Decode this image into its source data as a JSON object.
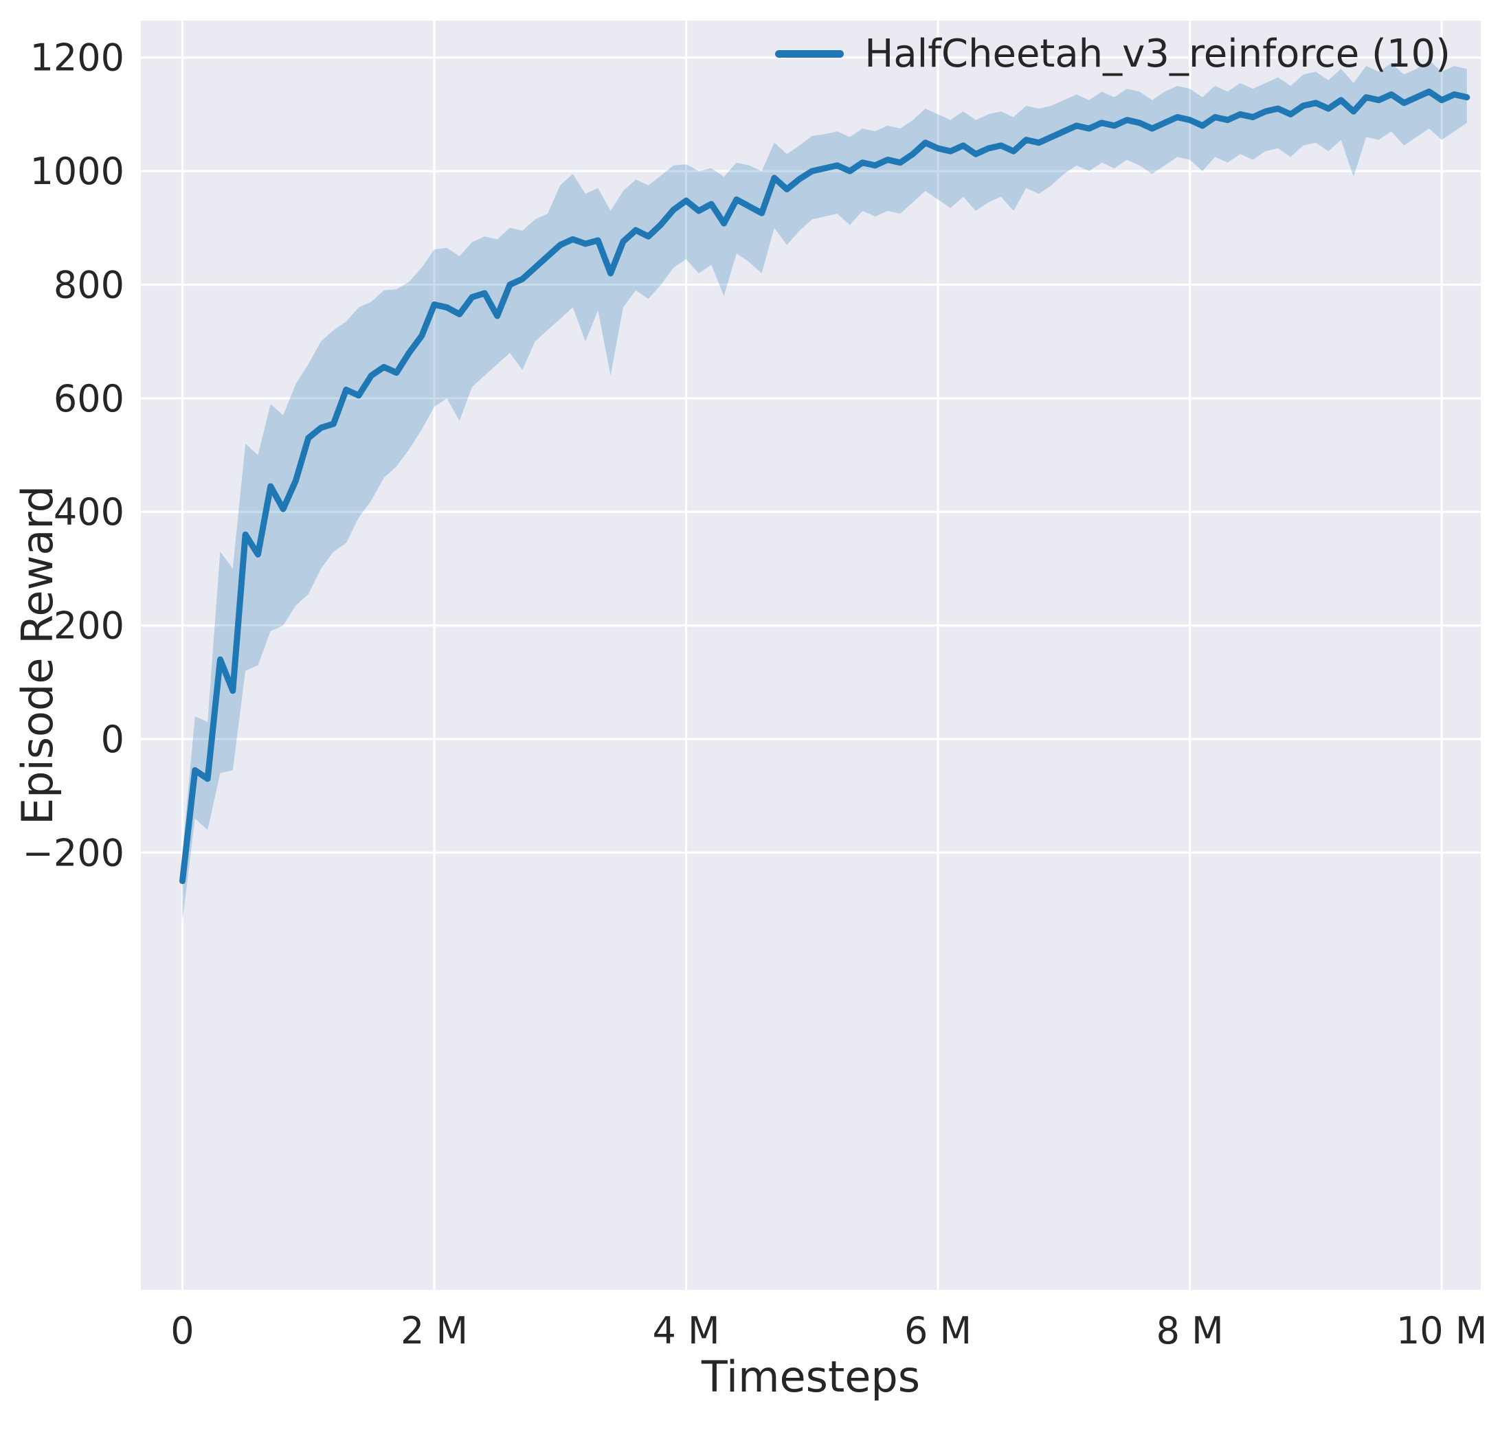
{
  "figure": {
    "background": "#ffffff"
  },
  "chart_data": {
    "type": "line",
    "title": "",
    "xlabel": "Timesteps",
    "ylabel": "Episode Reward",
    "x_unit": "timesteps (millions)",
    "grid": true,
    "plot_background": "#eaeaf2",
    "grid_color": "#ffffff",
    "text_color": "#262626",
    "xlim": [
      -0.33,
      10.31
    ],
    "ylim": [
      -970,
      1265
    ],
    "legend": {
      "position": "upper right",
      "entries": [
        {
          "label": "HalfCheetah_v3_reinforce (10)",
          "color": "#1f77b4"
        }
      ]
    },
    "x_ticks": [
      {
        "value": 0,
        "label": "0"
      },
      {
        "value": 2,
        "label": "2 M"
      },
      {
        "value": 4,
        "label": "4 M"
      },
      {
        "value": 6,
        "label": "6 M"
      },
      {
        "value": 8,
        "label": "8 M"
      },
      {
        "value": 10,
        "label": "10 M"
      }
    ],
    "y_ticks": [
      {
        "value": 1200,
        "label": "1200"
      },
      {
        "value": 1000,
        "label": "1000"
      },
      {
        "value": 800,
        "label": "800"
      },
      {
        "value": 600,
        "label": "600"
      },
      {
        "value": 400,
        "label": "400"
      },
      {
        "value": 200,
        "label": "200"
      },
      {
        "value": 0,
        "label": "0"
      },
      {
        "value": -200,
        "label": "−200"
      }
    ],
    "series": [
      {
        "name": "HalfCheetah_v3_reinforce (10)",
        "color": "#1f77b4",
        "band_color": "rgba(31,119,180,0.25)",
        "line_width": 9,
        "x_millions": [
          0,
          0.1,
          0.2,
          0.3,
          0.4,
          0.5,
          0.6,
          0.7,
          0.8,
          0.9,
          1,
          1.1,
          1.2,
          1.3,
          1.4,
          1.5,
          1.6,
          1.7,
          1.8,
          1.9,
          2,
          2.1,
          2.2,
          2.3,
          2.4,
          2.5,
          2.6,
          2.7,
          2.8,
          2.9,
          3,
          3.1,
          3.2,
          3.3,
          3.4,
          3.5,
          3.6,
          3.7,
          3.8,
          3.9,
          4,
          4.1,
          4.2,
          4.3,
          4.4,
          4.5,
          4.6,
          4.7,
          4.8,
          4.9,
          5,
          5.1,
          5.2,
          5.3,
          5.4,
          5.5,
          5.6,
          5.7,
          5.8,
          5.9,
          6,
          6.1,
          6.2,
          6.3,
          6.4,
          6.5,
          6.6,
          6.7,
          6.8,
          6.9,
          7,
          7.1,
          7.2,
          7.3,
          7.4,
          7.5,
          7.6,
          7.7,
          7.8,
          7.9,
          8,
          8.1,
          8.2,
          8.3,
          8.4,
          8.5,
          8.6,
          8.7,
          8.8,
          8.9,
          9,
          9.1,
          9.2,
          9.3,
          9.4,
          9.5,
          9.6,
          9.7,
          9.8,
          9.9,
          10,
          10.1,
          10.2
        ],
        "mean": [
          -250,
          -55,
          -70,
          140,
          85,
          360,
          325,
          445,
          405,
          455,
          530,
          548,
          555,
          615,
          605,
          640,
          655,
          645,
          680,
          710,
          765,
          760,
          748,
          778,
          785,
          745,
          800,
          810,
          830,
          850,
          870,
          880,
          872,
          878,
          820,
          876,
          896,
          885,
          906,
          932,
          948,
          930,
          942,
          908,
          950,
          938,
          926,
          988,
          968,
          986,
          1000,
          1005,
          1010,
          1000,
          1015,
          1010,
          1020,
          1015,
          1030,
          1050,
          1040,
          1035,
          1045,
          1030,
          1040,
          1045,
          1035,
          1055,
          1050,
          1060,
          1070,
          1080,
          1075,
          1085,
          1080,
          1090,
          1085,
          1075,
          1085,
          1095,
          1090,
          1080,
          1095,
          1090,
          1100,
          1095,
          1105,
          1110,
          1100,
          1115,
          1120,
          1110,
          1125,
          1105,
          1130,
          1125,
          1135,
          1120,
          1130,
          1140,
          1125,
          1135,
          1130
        ],
        "band_low": [
          -320,
          -140,
          -160,
          -60,
          -55,
          120,
          130,
          190,
          200,
          235,
          255,
          300,
          330,
          345,
          390,
          420,
          460,
          480,
          510,
          545,
          585,
          600,
          560,
          620,
          640,
          660,
          680,
          650,
          700,
          720,
          740,
          760,
          700,
          755,
          640,
          760,
          790,
          775,
          800,
          830,
          845,
          820,
          835,
          780,
          855,
          840,
          820,
          900,
          870,
          895,
          915,
          920,
          925,
          905,
          930,
          920,
          930,
          925,
          945,
          965,
          950,
          935,
          955,
          930,
          945,
          955,
          930,
          970,
          960,
          975,
          995,
          1010,
          1000,
          1015,
          1005,
          1020,
          1010,
          995,
          1010,
          1025,
          1020,
          1000,
          1025,
          1015,
          1030,
          1020,
          1035,
          1040,
          1025,
          1045,
          1050,
          1035,
          1055,
          990,
          1060,
          1055,
          1070,
          1045,
          1060,
          1075,
          1055,
          1070,
          1085
        ],
        "band_high": [
          -200,
          40,
          30,
          330,
          300,
          520,
          500,
          590,
          570,
          625,
          660,
          700,
          720,
          735,
          760,
          770,
          790,
          792,
          805,
          830,
          862,
          865,
          850,
          875,
          885,
          880,
          900,
          895,
          915,
          925,
          975,
          995,
          960,
          970,
          930,
          965,
          985,
          975,
          992,
          1010,
          1012,
          1000,
          1005,
          990,
          1015,
          1010,
          1000,
          1050,
          1030,
          1045,
          1062,
          1065,
          1070,
          1060,
          1075,
          1070,
          1080,
          1075,
          1090,
          1110,
          1100,
          1090,
          1105,
          1090,
          1100,
          1105,
          1095,
          1115,
          1110,
          1115,
          1125,
          1135,
          1125,
          1140,
          1130,
          1145,
          1140,
          1125,
          1140,
          1150,
          1145,
          1130,
          1150,
          1140,
          1155,
          1145,
          1155,
          1165,
          1150,
          1170,
          1175,
          1160,
          1180,
          1155,
          1185,
          1175,
          1190,
          1170,
          1180,
          1195,
          1175,
          1185,
          1180
        ]
      }
    ]
  }
}
